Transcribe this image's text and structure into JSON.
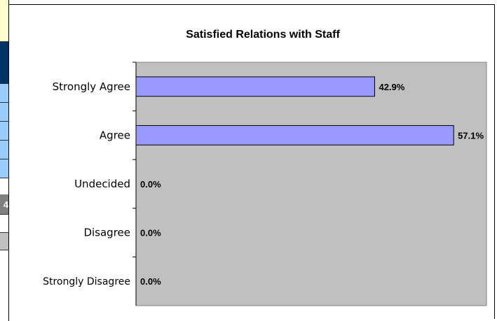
{
  "chart_data": {
    "type": "bar",
    "orientation": "horizontal",
    "title": "Satisfied Relations with Staff",
    "categories": [
      "Strongly Agree",
      "Agree",
      "Undecided",
      "Disagree",
      "Strongly Disagree"
    ],
    "values": [
      42.9,
      57.1,
      0.0,
      0.0,
      0.0
    ],
    "value_labels": [
      "42.9%",
      "57.1%",
      "0.0%",
      "0.0%",
      "0.0%"
    ],
    "xlim": [
      0,
      63
    ],
    "grid": false,
    "legend": "none",
    "colors": {
      "bar_fill": "#9999ff",
      "plot_background": "#c0c0c0"
    }
  },
  "sheet": {
    "visible_fragment": "4",
    "colors": {
      "top_cell": "#ffffcc",
      "header_cell": "#003366",
      "data_cell": "#99ccff",
      "dark_cell": "#808080",
      "grey_cell": "#c0c0c0"
    }
  }
}
